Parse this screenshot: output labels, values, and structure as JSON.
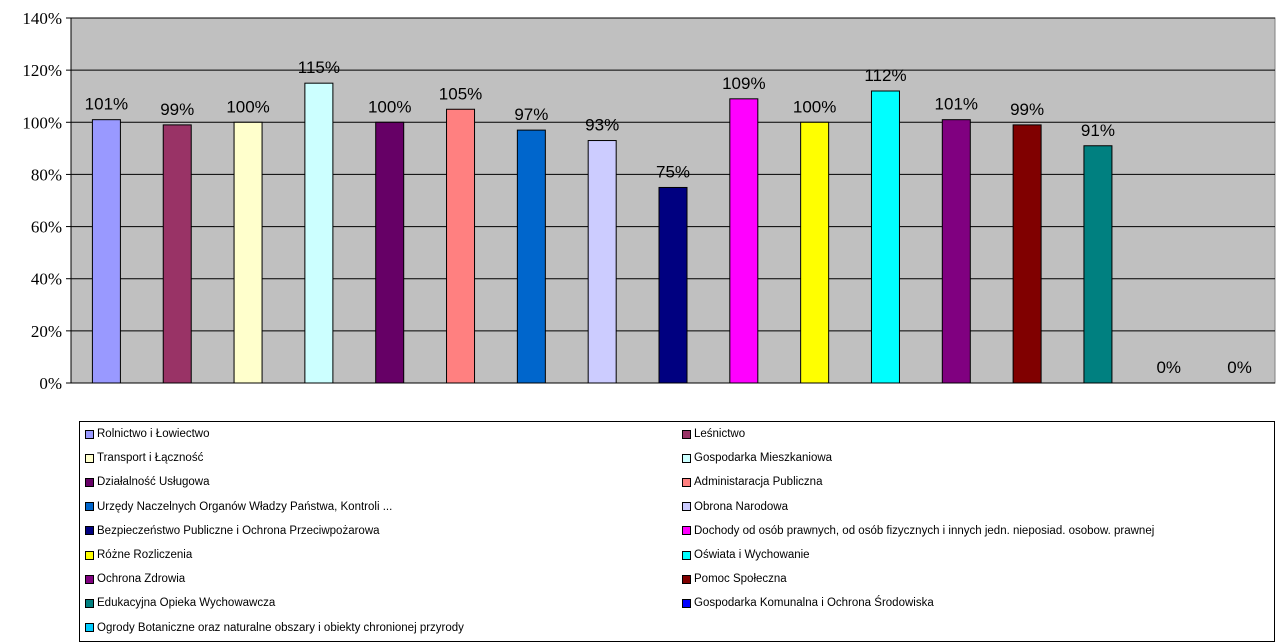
{
  "chart_data": {
    "type": "bar",
    "ylim": [
      0,
      140
    ],
    "yticks": [
      "0%",
      "20%",
      "40%",
      "60%",
      "80%",
      "100%",
      "120%",
      "140%"
    ],
    "grid": true,
    "legend_placement": "bottom",
    "plot_background": "#c0c0c0",
    "bars": [
      {
        "value": 101,
        "label": "101%",
        "color": "#9999ff"
      },
      {
        "value": 99,
        "label": "99%",
        "color": "#993366"
      },
      {
        "value": 100,
        "label": "100%",
        "color": "#ffffcc"
      },
      {
        "value": 115,
        "label": "115%",
        "color": "#ccffff"
      },
      {
        "value": 100,
        "label": "100%",
        "color": "#660066"
      },
      {
        "value": 105,
        "label": "105%",
        "color": "#ff8080"
      },
      {
        "value": 97,
        "label": "97%",
        "color": "#0066cc"
      },
      {
        "value": 93,
        "label": "93%",
        "color": "#ccccff"
      },
      {
        "value": 75,
        "label": "75%",
        "color": "#000080"
      },
      {
        "value": 109,
        "label": "109%",
        "color": "#ff00ff"
      },
      {
        "value": 100,
        "label": "100%",
        "color": "#ffff00"
      },
      {
        "value": 112,
        "label": "112%",
        "color": "#00ffff"
      },
      {
        "value": 101,
        "label": "101%",
        "color": "#800080"
      },
      {
        "value": 99,
        "label": "99%",
        "color": "#800000"
      },
      {
        "value": 91,
        "label": "91%",
        "color": "#008080"
      },
      {
        "value": 0,
        "label": "0%",
        "color": "#0000ff"
      },
      {
        "value": 0,
        "label": "0%",
        "color": "#00ccff"
      }
    ],
    "legend": [
      {
        "name": "Rolnictwo i Łowiectwo",
        "color": "#9999ff"
      },
      {
        "name": "Leśnictwo",
        "color": "#993366"
      },
      {
        "name": "Transport i Łączność",
        "color": "#ffffcc"
      },
      {
        "name": "Gospodarka Mieszkaniowa",
        "color": "#ccffff"
      },
      {
        "name": "Działalność Usługowa",
        "color": "#660066"
      },
      {
        "name": "Administaracja Publiczna",
        "color": "#ff8080"
      },
      {
        "name": "Urzędy Naczelnych Organów Władzy Państwa, Kontroli ...",
        "color": "#0066cc"
      },
      {
        "name": "Obrona Narodowa",
        "color": "#ccccff"
      },
      {
        "name": "Bezpieczeństwo Publiczne i Ochrona Przeciwpożarowa",
        "color": "#000080"
      },
      {
        "name": "Dochody od osób prawnych, od osób fizycznych i innych jedn. nieposiad. osobow. prawnej",
        "color": "#ff00ff"
      },
      {
        "name": "Różne Rozliczenia",
        "color": "#ffff00"
      },
      {
        "name": "Oświata i Wychowanie",
        "color": "#00ffff"
      },
      {
        "name": "Ochrona Zdrowia",
        "color": "#800080"
      },
      {
        "name": "Pomoc Społeczna",
        "color": "#800000"
      },
      {
        "name": "Edukacyjna Opieka Wychowawcza",
        "color": "#008080"
      },
      {
        "name": "Gospodarka Komunalna i Ochrona Środowiska",
        "color": "#0000ff"
      },
      {
        "name": "Ogrody Botaniczne oraz naturalne obszary i obiekty chronionej przyrody",
        "color": "#00ccff"
      }
    ]
  }
}
